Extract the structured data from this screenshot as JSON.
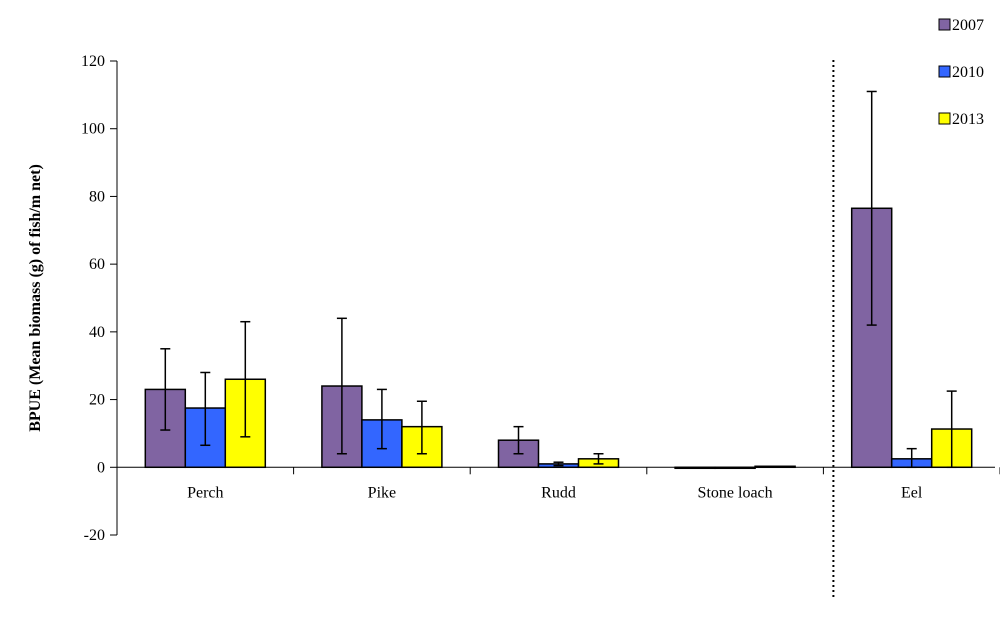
{
  "chart_data": {
    "type": "bar",
    "title": "",
    "xlabel": "",
    "ylabel": "BPUE (Mean biomass (g) of  fish/m net)",
    "ylim": [
      -20,
      120
    ],
    "yticks": [
      -20,
      0,
      20,
      40,
      60,
      80,
      100,
      120
    ],
    "grid": false,
    "legend_position": "top-right",
    "categories": [
      "Perch",
      "Pike",
      "Rudd",
      "Stone loach",
      "Eel"
    ],
    "separator_after_category": "Stone loach",
    "series": [
      {
        "name": "2007",
        "color": "#8064A2",
        "values": [
          23,
          24,
          8,
          0,
          76.5
        ],
        "err_low": [
          11,
          4,
          4,
          0,
          42
        ],
        "err_high": [
          35,
          44,
          12,
          0,
          111
        ]
      },
      {
        "name": "2010",
        "color": "#3366FF",
        "values": [
          17.5,
          14,
          1,
          0,
          2.5
        ],
        "err_low": [
          6.5,
          5.5,
          0.5,
          0,
          0
        ],
        "err_high": [
          28,
          23,
          1.5,
          0,
          5.5
        ]
      },
      {
        "name": "2013",
        "color": "#FFFF00",
        "values": [
          26,
          12,
          2.5,
          0.3,
          11.3
        ],
        "err_low": [
          9,
          4,
          1,
          0.2,
          0
        ],
        "err_high": [
          43,
          19.5,
          4,
          0.4,
          22.5
        ]
      }
    ]
  }
}
